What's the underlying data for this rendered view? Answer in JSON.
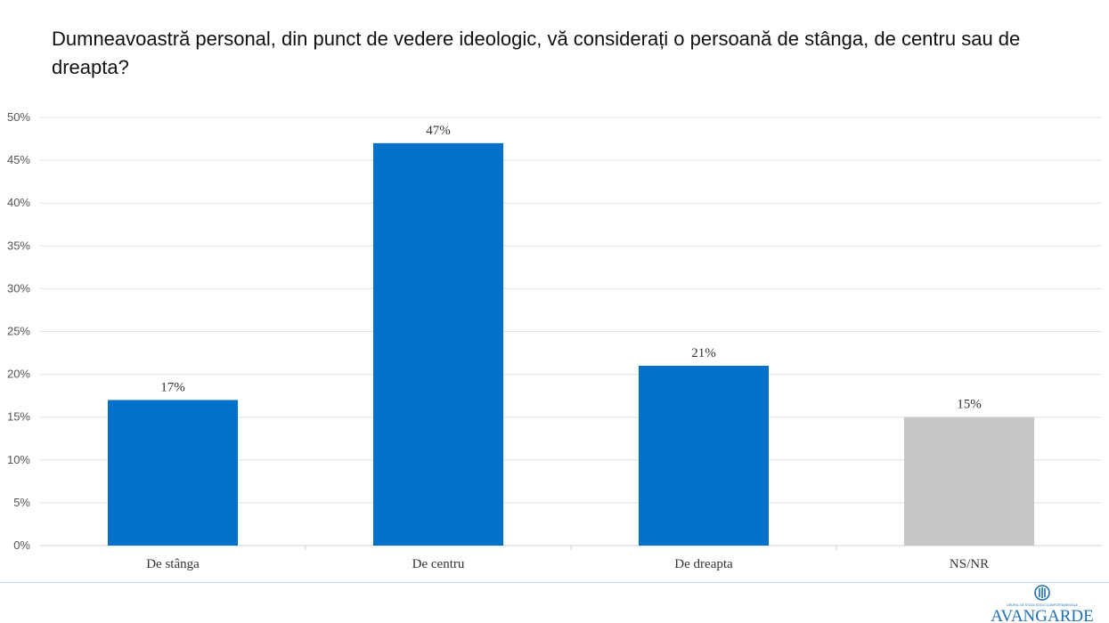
{
  "title": "Dumneavoastră personal, din punct de vedere ideologic, vă considerați o persoană de stânga, de centru sau de dreapta?",
  "logo_text": "AVANGARDE",
  "logo_subtext": "GRUPUL DE STUDII SOCIO-COMPORTAMENTALE",
  "chart_data": {
    "type": "bar",
    "categories": [
      "De stânga",
      "De centru",
      "De dreapta",
      "NS/NR"
    ],
    "values": [
      17,
      47,
      21,
      15
    ],
    "value_labels": [
      "17%",
      "47%",
      "21%",
      "15%"
    ],
    "bar_colors": [
      "#0070c8",
      "#0070c8",
      "#0070c8",
      "#c6c6c6"
    ],
    "ylim": [
      0,
      50
    ],
    "yticks": [
      0,
      5,
      10,
      15,
      20,
      25,
      30,
      35,
      40,
      45,
      50
    ],
    "ytick_labels": [
      "0%",
      "5%",
      "10%",
      "15%",
      "20%",
      "25%",
      "30%",
      "35%",
      "40%",
      "45%",
      "50%"
    ],
    "grid": true,
    "legend": false
  },
  "colors": {
    "gridline": "#e3e3e3",
    "footer_line": "#bcd6ee",
    "logo": "#1f6fb5"
  }
}
